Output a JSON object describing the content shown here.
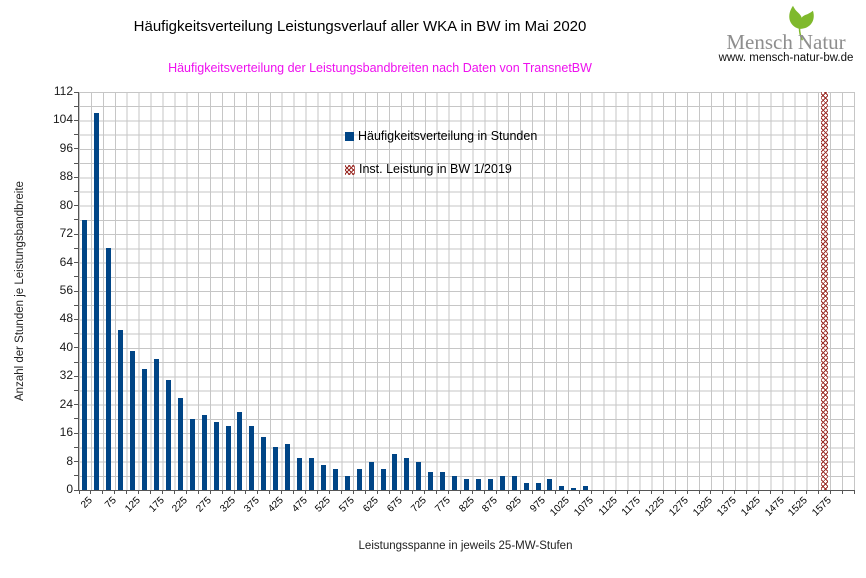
{
  "title": "Häufigkeitsverteilung Leistungsverlauf aller WKA in BW im Mai 2020",
  "subtitle": "Häufigkeitsverteilung der Leistungsbandbreiten nach Daten von TransnetBW",
  "logo": {
    "brand_part1": "Mensch",
    "brand_part2": "Natur",
    "url": "www. mensch-natur-bw.de",
    "leaf_icon": "ginkgo-leaf",
    "leaf_color": "#7fb92c",
    "text_color": "#8e8e8e"
  },
  "colors": {
    "bars": "#004586",
    "capacity_hatch": "#9b2e28",
    "subtitle": "#ee10ee",
    "grid": "#c6c6c6",
    "axis": "#555555"
  },
  "chart_data": {
    "type": "bar",
    "title": "Häufigkeitsverteilung Leistungsverlauf aller WKA in BW im Mai 2020",
    "subtitle": "Häufigkeitsverteilung der Leistungsbandbreiten nach Daten von TransnetBW",
    "xlabel": "Leistungsspanne in jeweils 25-MW-Stufen",
    "ylabel": "Anzahl der Stunden je Leistungsbandbreite",
    "ylim": [
      0,
      112
    ],
    "ytick_major": 8,
    "ytick_minor": 4,
    "grid": true,
    "legend_position": "inside-top-center",
    "legend": [
      {
        "label": "Häufigkeitsverteilung in Stunden",
        "swatch": "solid-blue"
      },
      {
        "label": "Inst. Leistung in BW 1/2019",
        "swatch": "red-crosshatch"
      }
    ],
    "x_tick_labels": [
      25,
      75,
      125,
      175,
      225,
      275,
      325,
      375,
      425,
      475,
      525,
      575,
      625,
      675,
      725,
      775,
      825,
      875,
      925,
      975,
      1025,
      1075,
      1125,
      1175,
      1225,
      1275,
      1325,
      1375,
      1425,
      1475,
      1525,
      1575
    ],
    "series": [
      {
        "name": "Häufigkeitsverteilung in Stunden",
        "type": "bar",
        "color": "#004586",
        "categories": [
          25,
          50,
          75,
          100,
          125,
          150,
          175,
          200,
          225,
          250,
          275,
          300,
          325,
          350,
          375,
          400,
          425,
          450,
          475,
          500,
          525,
          550,
          575,
          600,
          625,
          650,
          675,
          700,
          725,
          750,
          775,
          800,
          825,
          850,
          875,
          900,
          925,
          950,
          975,
          1000,
          1025,
          1050,
          1075,
          1100,
          1125,
          1150,
          1175,
          1200,
          1225,
          1250,
          1275,
          1300,
          1325,
          1350,
          1375,
          1400,
          1425,
          1450,
          1475,
          1500,
          1525,
          1550,
          1575,
          1600,
          1625
        ],
        "values": [
          76,
          106,
          68,
          45,
          39,
          34,
          37,
          31,
          26,
          20,
          21,
          19,
          18,
          22,
          18,
          15,
          12,
          13,
          9,
          9,
          7,
          6,
          4,
          6,
          8,
          6,
          10,
          9,
          8,
          5,
          5,
          4,
          3,
          3,
          3,
          4,
          4,
          2,
          2,
          3,
          1,
          0.5,
          1,
          0,
          0,
          0,
          0,
          0,
          0,
          0,
          0,
          0,
          0,
          0,
          0,
          0,
          0,
          0,
          0,
          0,
          0,
          0,
          0,
          0,
          0
        ]
      },
      {
        "name": "Inst. Leistung in BW 1/2019",
        "type": "full-height-marker",
        "category": 1575,
        "style": "red-crosshatch"
      }
    ]
  }
}
